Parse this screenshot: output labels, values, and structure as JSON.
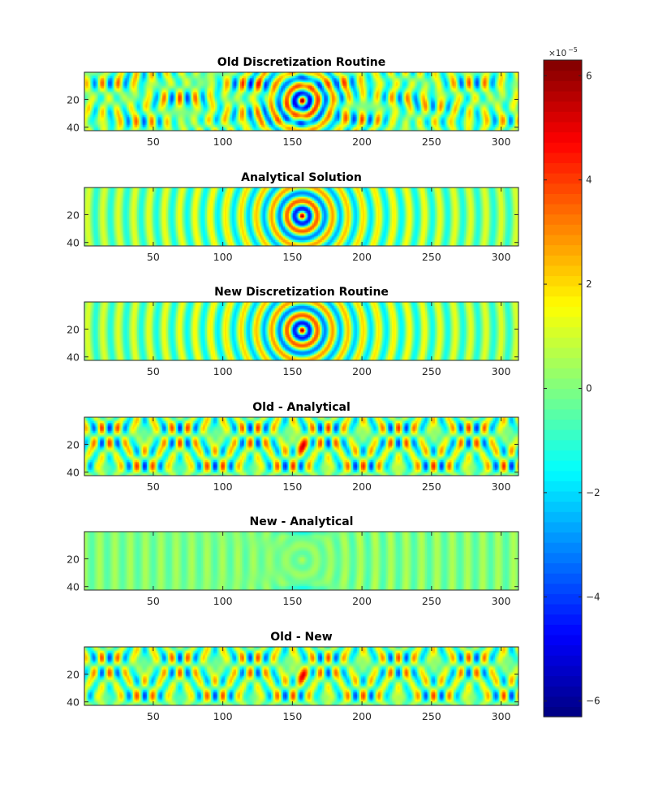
{
  "chart_data": [
    {
      "type": "heatmap",
      "title": "Old Discretization Routine",
      "field": "old",
      "xlim": [
        1,
        312
      ],
      "ylim": [
        1,
        42
      ],
      "xticks": [
        50,
        100,
        150,
        200,
        250,
        300
      ],
      "yticks": [
        20,
        40
      ]
    },
    {
      "type": "heatmap",
      "title": "Analytical Solution",
      "field": "analytical",
      "xlim": [
        1,
        312
      ],
      "ylim": [
        1,
        42
      ],
      "xticks": [
        50,
        100,
        150,
        200,
        250,
        300
      ],
      "yticks": [
        20,
        40
      ]
    },
    {
      "type": "heatmap",
      "title": "New Discretization Routine",
      "field": "new",
      "xlim": [
        1,
        312
      ],
      "ylim": [
        1,
        42
      ],
      "xticks": [
        50,
        100,
        150,
        200,
        250,
        300
      ],
      "yticks": [
        20,
        40
      ]
    },
    {
      "type": "heatmap",
      "title": "Old - Analytical",
      "field": "old_minus_analytical",
      "xlim": [
        1,
        312
      ],
      "ylim": [
        1,
        42
      ],
      "xticks": [
        50,
        100,
        150,
        200,
        250,
        300
      ],
      "yticks": [
        20,
        40
      ]
    },
    {
      "type": "heatmap",
      "title": "New - Analytical",
      "field": "new_minus_analytical",
      "xlim": [
        1,
        312
      ],
      "ylim": [
        1,
        42
      ],
      "xticks": [
        50,
        100,
        150,
        200,
        250,
        300
      ],
      "yticks": [
        20,
        40
      ]
    },
    {
      "type": "heatmap",
      "title": "Old - New",
      "field": "old_minus_new",
      "xlim": [
        1,
        312
      ],
      "ylim": [
        1,
        42
      ],
      "xticks": [
        50,
        100,
        150,
        200,
        250,
        300
      ],
      "yticks": [
        20,
        40
      ]
    }
  ],
  "colorbar": {
    "colormap": "jet",
    "clim": [
      -6.3,
      6.3
    ],
    "ticks": [
      -6,
      -4,
      -2,
      0,
      2,
      4,
      6
    ],
    "tick_labels": [
      "−6",
      "−4",
      "−2",
      "0",
      "2",
      "4",
      "6"
    ],
    "multiplier_base": "×10",
    "multiplier_exp": "−5"
  }
}
